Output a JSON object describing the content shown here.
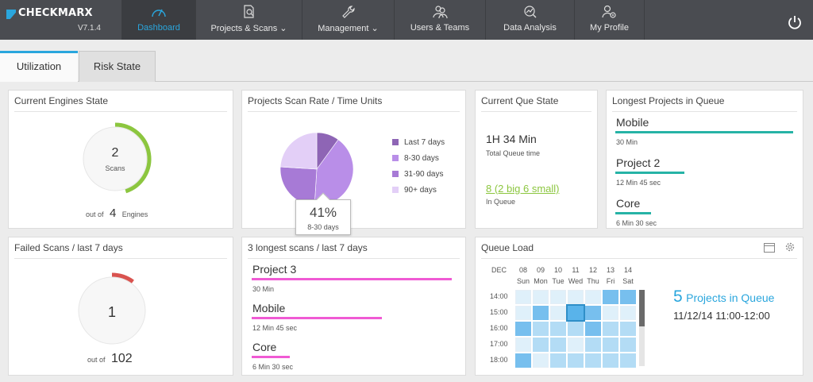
{
  "app": {
    "brand": "CHECKMARX",
    "version": "V7.1.4"
  },
  "nav": [
    {
      "label": "Dashboard",
      "icon": "gauge-icon"
    },
    {
      "label": "Projects & Scans",
      "icon": "document-search-icon"
    },
    {
      "label": "Management",
      "icon": "wrench-icon"
    },
    {
      "label": "Users & Teams",
      "icon": "users-icon"
    },
    {
      "label": "Data Analysis",
      "icon": "chart-search-icon"
    },
    {
      "label": "My Profile",
      "icon": "profile-gear-icon"
    }
  ],
  "tabs": [
    "Utilization",
    "Risk State"
  ],
  "engines": {
    "title": "Current Engines State",
    "count": "2",
    "count_label": "Scans",
    "out_of_prefix": "out of",
    "total": "4",
    "total_suffix": "Engines",
    "fraction": 0.45
  },
  "scan_rate": {
    "title": "Projects Scan Rate / Time Units",
    "tooltip_value": "41%",
    "tooltip_label": "8-30 days",
    "chart_data": {
      "type": "pie",
      "categories": [
        "Last 7 days",
        "8-30 days",
        "31-90 days",
        "90+ days"
      ],
      "values": [
        10,
        41,
        25,
        24
      ],
      "colors": [
        "#8e65b5",
        "#b98ee8",
        "#a77ad6",
        "#e3cff7"
      ]
    }
  },
  "queue_state": {
    "title": "Current Que State",
    "time": "1H  34 Min",
    "time_label": "Total Queue time",
    "in_queue": "8 (2 big 6 small)",
    "in_queue_label": "In Queue"
  },
  "longest_queue": {
    "title": "Longest Projects in Queue",
    "items": [
      {
        "name": "Mobile",
        "time": "30 Min",
        "fraction": 1.0
      },
      {
        "name": "Project 2",
        "time": "12 Min  45 sec",
        "fraction": 0.39
      },
      {
        "name": "Core",
        "time": "6 Min  30 sec",
        "fraction": 0.2
      }
    ]
  },
  "failed": {
    "title": "Failed Scans / last 7 days",
    "count": "1",
    "out_of_prefix": "out of",
    "total": "102",
    "fraction": 0.1
  },
  "longest_scans": {
    "title": "3 longest scans / last 7 days",
    "items": [
      {
        "name": "Project 3",
        "time": "30 Min",
        "fraction": 1.0
      },
      {
        "name": "Mobile",
        "time": "12 Min  45 sec",
        "fraction": 0.65
      },
      {
        "name": "Core",
        "time": "6 Min  30 sec",
        "fraction": 0.19
      }
    ]
  },
  "queue_load": {
    "title": "Queue Load",
    "month": "DEC",
    "dates": [
      "08",
      "09",
      "10",
      "11",
      "12",
      "13",
      "14"
    ],
    "days": [
      "Sun",
      "Mon",
      "Tue",
      "Wed",
      "Thu",
      "Fri",
      "Sat"
    ],
    "hours": [
      "14:00",
      "15:00",
      "16:00",
      "17:00",
      "18:00"
    ],
    "levels": [
      [
        1,
        1,
        1,
        1,
        1,
        3,
        3
      ],
      [
        1,
        3,
        1,
        4,
        3,
        1,
        1
      ],
      [
        3,
        2,
        2,
        2,
        3,
        2,
        2
      ],
      [
        1,
        2,
        2,
        1,
        2,
        2,
        2
      ],
      [
        3,
        1,
        2,
        2,
        2,
        2,
        2
      ]
    ],
    "level_colors": [
      "#ffffff",
      "#dff0fa",
      "#b3dcf5",
      "#77bfee",
      "#59b3ea"
    ],
    "projects_count": "5",
    "projects_label": "Projects in Queue",
    "selected_info": "11/12/14  11:00-12:00"
  }
}
